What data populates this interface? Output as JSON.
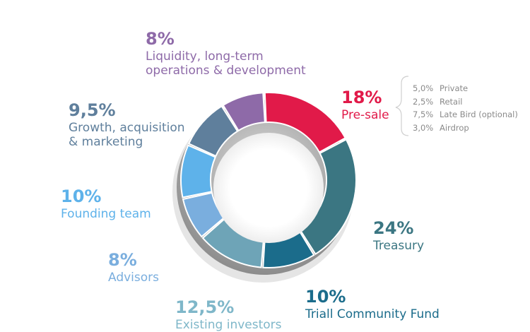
{
  "chart_data": {
    "type": "pie",
    "title": "",
    "slices": [
      {
        "label": "Pre-sale",
        "value": 18,
        "value_label": "18%",
        "color": "#e11a49"
      },
      {
        "label": "Treasury",
        "value": 24,
        "value_label": "24%",
        "color": "#3b7682"
      },
      {
        "label": "Triall Community Fund",
        "value": 10,
        "value_label": "10%",
        "color": "#1b6c8b"
      },
      {
        "label": "Existing investors",
        "value": 12.5,
        "value_label": "12,5%",
        "color": "#6ea4b7"
      },
      {
        "label": "Advisors",
        "value": 8,
        "value_label": "8%",
        "color": "#7aaede"
      },
      {
        "label": "Founding team",
        "value": 10,
        "value_label": "10%",
        "color": "#5eb2ea"
      },
      {
        "label": "Growth, acquisition\n& marketing",
        "value": 9.5,
        "value_label": "9,5%",
        "color": "#5f7f9c"
      },
      {
        "label": "Liquidity, long-term\noperations & development",
        "value": 8,
        "value_label": "8%",
        "color": "#8e6aa8"
      }
    ],
    "presale_breakdown": [
      {
        "amount": "5,0%",
        "label": "Private"
      },
      {
        "amount": "2,5%",
        "label": "Retail"
      },
      {
        "amount": "7,5%",
        "label": "Late Bird (optional)"
      },
      {
        "amount": "3,0%",
        "label": "Airdrop"
      }
    ]
  }
}
